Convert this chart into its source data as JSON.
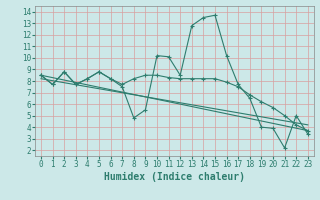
{
  "title": "",
  "xlabel": "Humidex (Indice chaleur)",
  "ylabel": "",
  "bg_color": "#cce8e8",
  "grid_color": "#d8a0a0",
  "line_color": "#2e7d6e",
  "xlim": [
    -0.5,
    23.5
  ],
  "ylim": [
    1.5,
    14.5
  ],
  "xticks": [
    0,
    1,
    2,
    3,
    4,
    5,
    6,
    7,
    8,
    9,
    10,
    11,
    12,
    13,
    14,
    15,
    16,
    17,
    18,
    19,
    20,
    21,
    22,
    23
  ],
  "yticks": [
    2,
    3,
    4,
    5,
    6,
    7,
    8,
    9,
    10,
    11,
    12,
    13,
    14
  ],
  "line1_x": [
    0,
    1,
    2,
    3,
    4,
    5,
    6,
    7,
    8,
    9,
    10,
    11,
    12,
    13,
    14,
    15,
    16,
    17,
    18,
    19,
    20,
    21,
    22,
    23
  ],
  "line1_y": [
    8.5,
    7.7,
    8.8,
    7.7,
    8.2,
    8.8,
    8.2,
    7.5,
    4.8,
    5.5,
    10.2,
    10.1,
    8.5,
    12.8,
    13.5,
    13.7,
    10.2,
    7.7,
    6.5,
    4.0,
    3.9,
    2.2,
    5.0,
    3.4
  ],
  "line2_x": [
    0,
    1,
    2,
    3,
    4,
    5,
    6,
    7,
    8,
    9,
    10,
    11,
    12,
    13,
    14,
    15,
    16,
    17,
    18,
    19,
    20,
    21,
    22,
    23
  ],
  "line2_y": [
    8.5,
    7.7,
    8.8,
    7.7,
    8.2,
    8.8,
    8.2,
    7.7,
    8.2,
    8.5,
    8.5,
    8.3,
    8.2,
    8.2,
    8.2,
    8.2,
    7.9,
    7.5,
    6.8,
    6.2,
    5.7,
    5.0,
    4.2,
    3.7
  ],
  "line3_x": [
    0,
    23
  ],
  "line3_y": [
    8.5,
    3.7
  ],
  "line4_x": [
    0,
    23
  ],
  "line4_y": [
    8.2,
    4.2
  ],
  "marker_size": 2.5,
  "linewidth": 0.8,
  "xlabel_fontsize": 7,
  "tick_fontsize": 5.5
}
